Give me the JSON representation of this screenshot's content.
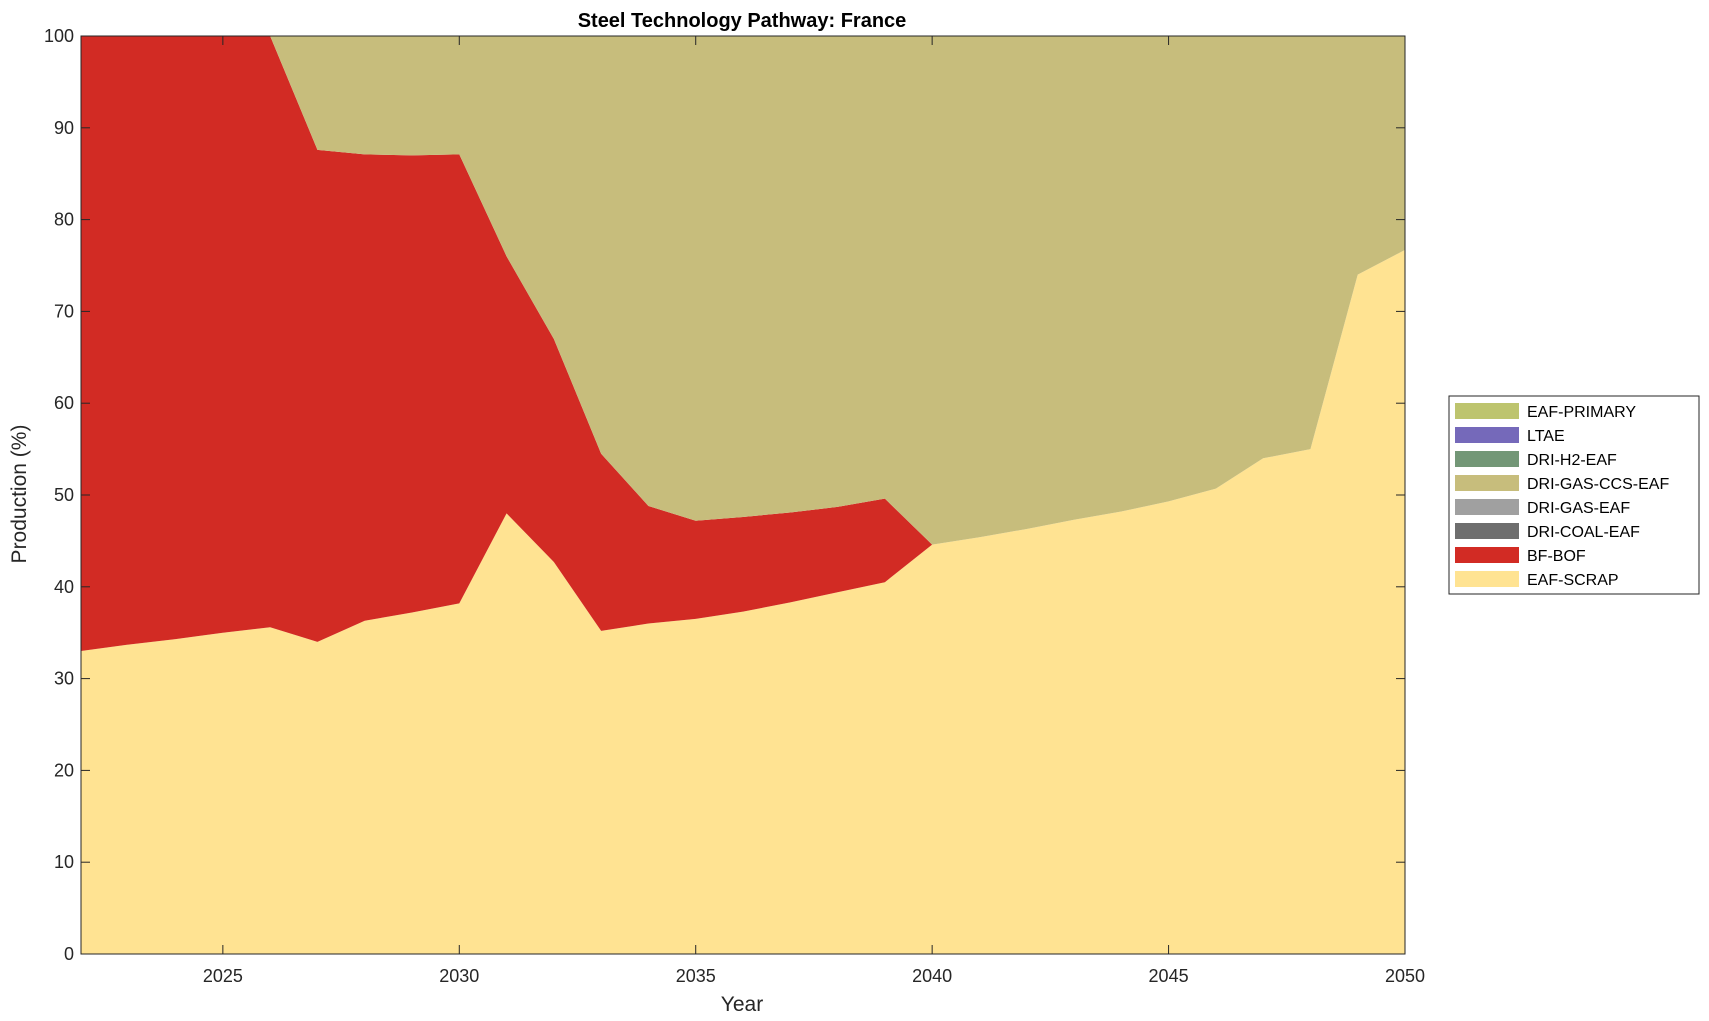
{
  "chart_data": {
    "type": "area",
    "stacked": true,
    "title": "Steel Technology Pathway: France",
    "xlabel": "Year",
    "ylabel": "Production (%)",
    "xlim": [
      2022,
      2050
    ],
    "ylim": [
      0,
      100
    ],
    "xticks": [
      2025,
      2030,
      2035,
      2040,
      2045,
      2050
    ],
    "yticks": [
      0,
      10,
      20,
      30,
      40,
      50,
      60,
      70,
      80,
      90,
      100
    ],
    "grid": false,
    "legend_position": "right",
    "x": [
      2022,
      2023,
      2024,
      2025,
      2026,
      2027,
      2028,
      2029,
      2030,
      2031,
      2032,
      2033,
      2034,
      2035,
      2036,
      2037,
      2038,
      2039,
      2040,
      2041,
      2042,
      2043,
      2044,
      2045,
      2046,
      2047,
      2048,
      2049,
      2050
    ],
    "series": [
      {
        "name": "EAF-SCRAP",
        "color": "#FFE392",
        "values": [
          33.0,
          33.7,
          34.3,
          35.0,
          35.6,
          34.0,
          36.3,
          37.2,
          38.2,
          48.0,
          42.7,
          35.2,
          36.0,
          36.5,
          37.3,
          38.3,
          39.4,
          40.5,
          44.6,
          45.4,
          46.3,
          47.3,
          48.2,
          49.3,
          50.7,
          54.0,
          55.0,
          74.0,
          76.7
        ]
      },
      {
        "name": "BF-BOF",
        "color": "#D22B24",
        "values": [
          67.0,
          66.3,
          65.7,
          65.0,
          64.4,
          53.6,
          50.8,
          49.8,
          48.9,
          28.0,
          24.3,
          19.3,
          12.8,
          10.7,
          10.3,
          9.8,
          9.3,
          9.1,
          0,
          0,
          0,
          0,
          0,
          0,
          0,
          0,
          0,
          0,
          0
        ]
      },
      {
        "name": "DRI-COAL-EAF",
        "color": "#6E6E6E",
        "values": [
          0,
          0,
          0,
          0,
          0,
          0,
          0,
          0,
          0,
          0,
          0,
          0,
          0,
          0,
          0,
          0,
          0,
          0,
          0,
          0,
          0,
          0,
          0,
          0,
          0,
          0,
          0,
          0,
          0
        ]
      },
      {
        "name": "DRI-GAS-EAF",
        "color": "#A0A0A0",
        "values": [
          0,
          0,
          0,
          0,
          0,
          0,
          0,
          0,
          0,
          0,
          0,
          0,
          0,
          0,
          0,
          0,
          0,
          0,
          0,
          0,
          0,
          0,
          0,
          0,
          0,
          0,
          0,
          0,
          0
        ]
      },
      {
        "name": "DRI-GAS-CCS-EAF",
        "color": "#C7BD7C",
        "values": [
          0,
          0,
          0,
          0,
          0,
          12.4,
          12.9,
          13.0,
          12.9,
          24.0,
          33.0,
          45.5,
          51.2,
          52.8,
          52.4,
          51.9,
          51.3,
          50.4,
          55.4,
          54.6,
          53.7,
          52.7,
          51.8,
          50.7,
          49.3,
          46.0,
          45.0,
          26.0,
          23.3
        ]
      },
      {
        "name": "DRI-H2-EAF",
        "color": "#739777",
        "values": [
          0,
          0,
          0,
          0,
          0,
          0,
          0,
          0,
          0,
          0,
          0,
          0,
          0,
          0,
          0,
          0,
          0,
          0,
          0,
          0,
          0,
          0,
          0,
          0,
          0,
          0,
          0,
          0,
          0
        ]
      },
      {
        "name": "LTAE",
        "color": "#7569BA",
        "values": [
          0,
          0,
          0,
          0,
          0,
          0,
          0,
          0,
          0,
          0,
          0,
          0,
          0,
          0,
          0,
          0,
          0,
          0,
          0,
          0,
          0,
          0,
          0,
          0,
          0,
          0,
          0,
          0,
          0
        ]
      },
      {
        "name": "EAF-PRIMARY",
        "color": "#BDC46E",
        "values": [
          0,
          0,
          0,
          0,
          0,
          0,
          0,
          0,
          0,
          0,
          0,
          0,
          0,
          0,
          0,
          0,
          0,
          0,
          0,
          0,
          0,
          0,
          0,
          0,
          0,
          0,
          0,
          0,
          0
        ]
      }
    ],
    "legend_order": [
      "EAF-PRIMARY",
      "LTAE",
      "DRI-H2-EAF",
      "DRI-GAS-CCS-EAF",
      "DRI-GAS-EAF",
      "DRI-COAL-EAF",
      "BF-BOF",
      "EAF-SCRAP"
    ]
  }
}
